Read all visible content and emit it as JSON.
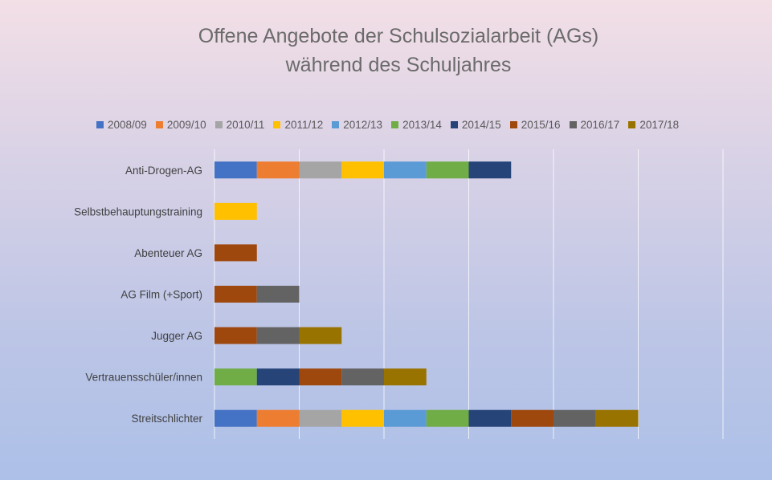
{
  "chart_data": {
    "type": "bar",
    "orientation": "horizontal",
    "stacked": true,
    "title": [
      "Offene Angebote der Schulsozialarbeit (AGs)",
      "während des Schuljahres"
    ],
    "legend_position": "top",
    "grid": true,
    "xlim": [
      0,
      12
    ],
    "categories": [
      "Anti-Drogen-AG",
      "Selbstbehauptungstraining",
      "Abenteuer AG",
      "AG Film (+Sport)",
      "Jugger AG",
      "Vertrauensschüler/innen",
      "Streitschlichter"
    ],
    "series": [
      {
        "name": "2008/09",
        "color": "#4472c4",
        "values": [
          1,
          0,
          0,
          0,
          0,
          0,
          1
        ]
      },
      {
        "name": "2009/10",
        "color": "#ed7d31",
        "values": [
          1,
          0,
          0,
          0,
          0,
          0,
          1
        ]
      },
      {
        "name": "2010/11",
        "color": "#a5a5a5",
        "values": [
          1,
          0,
          0,
          0,
          0,
          0,
          1
        ]
      },
      {
        "name": "2011/12",
        "color": "#ffc000",
        "values": [
          1,
          1,
          0,
          0,
          0,
          0,
          1
        ]
      },
      {
        "name": "2012/13",
        "color": "#5b9bd5",
        "values": [
          1,
          0,
          0,
          0,
          0,
          0,
          1
        ]
      },
      {
        "name": "2013/14",
        "color": "#70ad47",
        "values": [
          1,
          0,
          0,
          0,
          0,
          1,
          1
        ]
      },
      {
        "name": "2014/15",
        "color": "#264478",
        "values": [
          1,
          0,
          0,
          0,
          0,
          1,
          1
        ]
      },
      {
        "name": "2015/16",
        "color": "#9e480e",
        "values": [
          0,
          0,
          1,
          1,
          1,
          1,
          1
        ]
      },
      {
        "name": "2016/17",
        "color": "#636363",
        "values": [
          0,
          0,
          0,
          1,
          1,
          1,
          1
        ]
      },
      {
        "name": "2017/18",
        "color": "#997300",
        "values": [
          0,
          0,
          0,
          0,
          1,
          1,
          1
        ]
      }
    ]
  }
}
